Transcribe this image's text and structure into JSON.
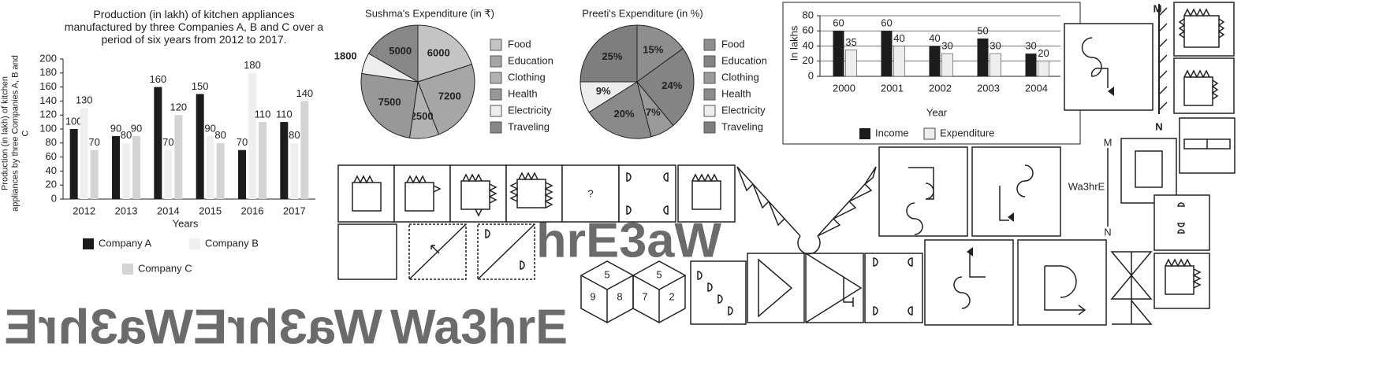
{
  "chart_data": [
    {
      "type": "bar",
      "title": "Production (in lakh) of kitchen appliances manufactured by three Companies A, B and C over a period of six years from 2012 to 2017.",
      "y_label": "Production (in lakh) of kitchen appliances by three Companies A, B and C",
      "x_label": "Years",
      "categories": [
        "2012",
        "2013",
        "2014",
        "2015",
        "2016",
        "2017"
      ],
      "series": [
        {
          "name": "Company A",
          "color": "#1c1c1c",
          "values": [
            100,
            90,
            160,
            150,
            70,
            110
          ]
        },
        {
          "name": "Company B",
          "color": "#efefef",
          "values": [
            130,
            80,
            70,
            90,
            180,
            80
          ]
        },
        {
          "name": "Company C",
          "color": "#d4d4d4",
          "values": [
            70,
            90,
            120,
            80,
            110,
            140
          ]
        }
      ],
      "ylim": [
        0,
        200
      ],
      "yticks": [
        0,
        20,
        40,
        60,
        80,
        100,
        120,
        140,
        160,
        180,
        200
      ],
      "grid": false
    },
    {
      "type": "pie",
      "title": "Sushma's Expenditure (in ₹)",
      "categories": [
        "Food",
        "Education",
        "Clothing",
        "Health",
        "Electricity",
        "Traveling"
      ],
      "values": [
        6000,
        7200,
        2500,
        7500,
        1800,
        5000
      ],
      "colors": [
        "#c4c4c4",
        "#a6a6a6",
        "#b2b2b2",
        "#989898",
        "#ededed",
        "#878787"
      ]
    },
    {
      "type": "pie",
      "title": "Preeti's Expenditure (in %)",
      "categories": [
        "Food",
        "Education",
        "Clothing",
        "Health",
        "Electricity",
        "Traveling"
      ],
      "values": [
        15,
        24,
        7,
        20,
        9,
        25
      ],
      "value_labels": [
        "15%",
        "24%",
        "7%",
        "20%",
        "9%",
        "25%"
      ],
      "colors": [
        "#8e8e8e",
        "#848484",
        "#9a9a9a",
        "#8a8a8a",
        "#ededed",
        "#7e7e7e"
      ]
    },
    {
      "type": "bar",
      "y_label": "In lakhs",
      "x_label": "Year",
      "categories": [
        "2000",
        "2001",
        "2002",
        "2003",
        "2004"
      ],
      "series": [
        {
          "name": "Income",
          "color": "#1c1c1c",
          "values": [
            60,
            60,
            40,
            50,
            30
          ]
        },
        {
          "name": "Expenditure",
          "color": "#eeeeee",
          "values": [
            35,
            40,
            30,
            30,
            20
          ]
        }
      ],
      "ylim": [
        0,
        80
      ],
      "yticks": [
        0,
        20,
        40,
        60,
        80
      ],
      "grid": true
    }
  ],
  "figures": {
    "question_mark": "?",
    "mirror_top": "M",
    "mirror_bottom": "N",
    "axis_top": "M",
    "axis_bottom": "N",
    "word": "Wa3hrE",
    "dice": [
      [
        5,
        9,
        8
      ],
      [
        5,
        7,
        2
      ]
    ]
  },
  "watermarks": [
    "hrE3aW",
    "Wa3hrEWa3hrE",
    "Wa3hrE"
  ]
}
